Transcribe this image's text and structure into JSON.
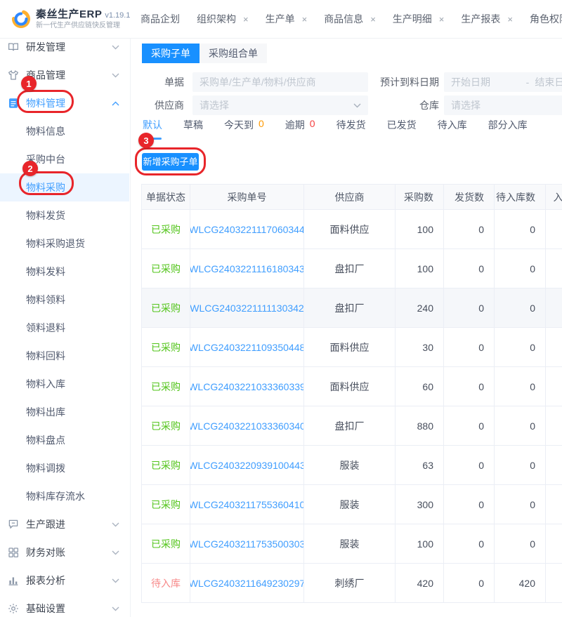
{
  "app": {
    "name": "秦丝生产ERP",
    "version": "v1.19.1",
    "subtitle": "新一代生产供应链快反管理"
  },
  "glyphs": {
    "close": "×"
  },
  "top_tabs": [
    {
      "label": "商品企划",
      "closable": false
    },
    {
      "label": "组织架构",
      "closable": true
    },
    {
      "label": "生产单",
      "closable": true
    },
    {
      "label": "商品信息",
      "closable": true
    },
    {
      "label": "生产明细",
      "closable": true
    },
    {
      "label": "生产报表",
      "closable": true
    },
    {
      "label": "角色权限",
      "closable": false
    }
  ],
  "sidebar": {
    "items": [
      {
        "type": "group",
        "icon": "book-icon",
        "label": "研发管理",
        "expanded": false,
        "active": false
      },
      {
        "type": "group",
        "icon": "tshirt-icon",
        "label": "商品管理",
        "expanded": false,
        "active": false
      },
      {
        "type": "group",
        "icon": "document-icon",
        "label": "物料管理",
        "expanded": true,
        "active": true
      },
      {
        "type": "sub",
        "label": "物料信息",
        "selected": false
      },
      {
        "type": "sub",
        "label": "采购中台",
        "selected": false
      },
      {
        "type": "sub",
        "label": "物料采购",
        "selected": true
      },
      {
        "type": "sub",
        "label": "物料发货",
        "selected": false
      },
      {
        "type": "sub",
        "label": "物料采购退货",
        "selected": false
      },
      {
        "type": "sub",
        "label": "物料发料",
        "selected": false
      },
      {
        "type": "sub",
        "label": "物料领料",
        "selected": false
      },
      {
        "type": "sub",
        "label": "领料退料",
        "selected": false
      },
      {
        "type": "sub",
        "label": "物料回料",
        "selected": false
      },
      {
        "type": "sub",
        "label": "物料入库",
        "selected": false
      },
      {
        "type": "sub",
        "label": "物料出库",
        "selected": false
      },
      {
        "type": "sub",
        "label": "物料盘点",
        "selected": false
      },
      {
        "type": "sub",
        "label": "物料调拨",
        "selected": false
      },
      {
        "type": "sub",
        "label": "物料库存流水",
        "selected": false
      },
      {
        "type": "group",
        "icon": "chat-icon",
        "label": "生产跟进",
        "expanded": false,
        "active": false
      },
      {
        "type": "group",
        "icon": "grid-icon",
        "label": "财务对账",
        "expanded": false,
        "active": false
      },
      {
        "type": "group",
        "icon": "chart-icon",
        "label": "报表分析",
        "expanded": false,
        "active": false
      },
      {
        "type": "group",
        "icon": "gear-icon",
        "label": "基础设置",
        "expanded": false,
        "active": false
      }
    ]
  },
  "main": {
    "module_tabs": [
      {
        "label": "采购子单",
        "active": true
      },
      {
        "label": "采购组合单",
        "active": false
      }
    ],
    "filters": {
      "bill_label": "单据",
      "bill_placeholder": "采购单/生产单/物料/供应商",
      "date_label": "预计到料日期",
      "date_start": "开始日期",
      "date_sep": "-",
      "date_end": "结束日期",
      "supplier_label": "供应商",
      "supplier_placeholder": "请选择",
      "warehouse_label": "仓库",
      "warehouse_placeholder": "请选择"
    },
    "status_tabs": [
      {
        "label": "默认",
        "active": true,
        "count": "",
        "count_color": ""
      },
      {
        "label": "草稿",
        "active": false,
        "count": "",
        "count_color": ""
      },
      {
        "label": "今天到",
        "active": false,
        "count": "0",
        "count_color": "#ff9900"
      },
      {
        "label": "逾期",
        "active": false,
        "count": "0",
        "count_color": "#f53f3f"
      },
      {
        "label": "待发货",
        "active": false,
        "count": "",
        "count_color": ""
      },
      {
        "label": "已发货",
        "active": false,
        "count": "",
        "count_color": ""
      },
      {
        "label": "待入库",
        "active": false,
        "count": "",
        "count_color": ""
      },
      {
        "label": "部分入库",
        "active": false,
        "count": "",
        "count_color": ""
      }
    ],
    "add_button_label": "新增采购子单",
    "table": {
      "columns": [
        "单据状态",
        "采购单号",
        "供应商",
        "采购数",
        "发货数",
        "待入库数",
        "入库数"
      ],
      "rows": [
        {
          "status": "已采购",
          "status_color": "#52c41a",
          "order_no": "WLCG2403221117060344",
          "supplier": "面料供应",
          "purchase_qty": "100",
          "shipped_qty": "0",
          "pending_in_qty": "0",
          "highlight": false
        },
        {
          "status": "已采购",
          "status_color": "#52c41a",
          "order_no": "WLCG2403221116180343",
          "supplier": "盘扣厂",
          "purchase_qty": "100",
          "shipped_qty": "0",
          "pending_in_qty": "0",
          "highlight": false
        },
        {
          "status": "已采购",
          "status_color": "#52c41a",
          "order_no": "WLCG2403221111130342",
          "supplier": "盘扣厂",
          "purchase_qty": "240",
          "shipped_qty": "0",
          "pending_in_qty": "0",
          "highlight": true
        },
        {
          "status": "已采购",
          "status_color": "#52c41a",
          "order_no": "WLCG2403221109350448",
          "supplier": "面料供应",
          "purchase_qty": "30",
          "shipped_qty": "0",
          "pending_in_qty": "0",
          "highlight": false
        },
        {
          "status": "已采购",
          "status_color": "#52c41a",
          "order_no": "WLCG2403221033360339",
          "supplier": "面料供应",
          "purchase_qty": "60",
          "shipped_qty": "0",
          "pending_in_qty": "0",
          "highlight": false
        },
        {
          "status": "已采购",
          "status_color": "#52c41a",
          "order_no": "WLCG2403221033360340",
          "supplier": "盘扣厂",
          "purchase_qty": "880",
          "shipped_qty": "0",
          "pending_in_qty": "0",
          "highlight": false
        },
        {
          "status": "已采购",
          "status_color": "#52c41a",
          "order_no": "WLCG2403220939100443",
          "supplier": "服装",
          "purchase_qty": "63",
          "shipped_qty": "0",
          "pending_in_qty": "0",
          "highlight": false
        },
        {
          "status": "已采购",
          "status_color": "#52c41a",
          "order_no": "WLCG2403211755360410",
          "supplier": "服装",
          "purchase_qty": "300",
          "shipped_qty": "0",
          "pending_in_qty": "0",
          "highlight": false
        },
        {
          "status": "已采购",
          "status_color": "#52c41a",
          "order_no": "WLCG2403211753500303",
          "supplier": "服装",
          "purchase_qty": "100",
          "shipped_qty": "0",
          "pending_in_qty": "0",
          "highlight": false
        },
        {
          "status": "待入库",
          "status_color": "#f78989",
          "order_no": "WLCG2403211649230297",
          "supplier": "刺绣厂",
          "purchase_qty": "420",
          "shipped_qty": "0",
          "pending_in_qty": "420",
          "highlight": false
        }
      ]
    }
  },
  "annotations": [
    {
      "label": "1"
    },
    {
      "label": "2"
    },
    {
      "label": "3"
    }
  ],
  "colors": {
    "primary": "#1890ff",
    "link": "#409eff",
    "success": "#52c41a",
    "pending": "#f78989",
    "annotation_red": "#e8252a"
  }
}
